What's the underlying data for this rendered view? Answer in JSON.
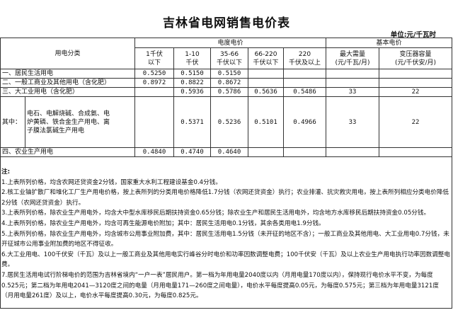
{
  "title": "吉林省电网销售电价表",
  "unit": "单位:元/千瓦时",
  "header": {
    "category": "用电分类",
    "energy_price": "电度电价",
    "basic_price": "基本电价",
    "voltage_cols": [
      "1千伏\n以下",
      "1-10\n千伏",
      "35-66\n千伏以下",
      "66-220\n千伏以下",
      "220\n千伏及以上"
    ],
    "basic_cols": [
      "最大需量\n(元/千瓦/月)",
      "变压器容量\n(元/千伏安/月)"
    ]
  },
  "rows": [
    {
      "label": "一、居民生活用电",
      "values": [
        "0.5250",
        "0.5150",
        "0.5150",
        "",
        "",
        "",
        ""
      ]
    },
    {
      "label": "二、一般工商业及其他用电（含化肥）",
      "values": [
        "0.8972",
        "0.8822",
        "0.8672",
        "",
        "",
        "",
        ""
      ]
    },
    {
      "label": "三、大工业用电（含化肥）",
      "values": [
        "",
        "0.5936",
        "0.5786",
        "0.5636",
        "0.5486",
        "33",
        "22"
      ]
    },
    {
      "label": "其中：",
      "sublabel": "电石、电解烧碱、合成氨、电炉黄磷、铁合金生产用电、离子膜法氯碱生产用电",
      "values": [
        "",
        "0.5371",
        "0.5236",
        "0.5101",
        "0.4966",
        "33",
        "22"
      ]
    },
    {
      "label": "四、农业生产用电",
      "values": [
        "0.4840",
        "0.4740",
        "0.4640",
        "",
        "",
        "",
        ""
      ]
    }
  ],
  "notes": {
    "heading": "注:",
    "items": [
      "1.上表所列价格，均含农网还贷资金2分钱，国家重大水利工程建设基金0.4分钱。",
      "2.核工业铀扩散厂和堆化工厂生产用电价格，按上表所列的分类用电价格降低1.7分钱（农网还贷资金）执行；农业排灌、抗灾救灾用电，按上表所列相应分类电价降低2分钱（农网还贷资金）执行。",
      "3.上表所列价格，除农业生产用电外，均含大中型水库移民后期扶持资金0.65分钱；除农业生产和居民生活用电外，均含地方水库移民后期扶持资金0.05分钱。",
      "4.上表所列价格，除农业生产用电外，均含可再生能源电价附加；其中：居民生活用电0.1分钱，其余各类用电1.9分钱。",
      "5.上表所列价格，除农业生产用电外，均含城市公用事业附加费，其中：居民生活用电1.5分钱（未开征的地区不含）；一般工商业及其他用电、大工业用电0.7分钱，未开征城市公用事业附加费的地区不得征收。",
      "6.大工业用电、100千伏安（千瓦）及以上一般工商业及其他用电实行峰谷分时电价和功率因数调整电费；100千伏安（千瓦）及以上农业生产用电执行功率因数调整电费。",
      "7.居民生活用电试行阶梯电价的范围为吉林省境内“一户一表”居民用户。第一档为年用电量2040度以内（月用电量170度以内），保持现行电价水平不变，为每度0.525元；第二档为年用电2041—3120度之间的电量（月用电量171—260度之间电量），电价水平每度提高0.05元，为每度0.575元；第三档为年用电量3121度（月用电量261度）及以上，电价水平每度提高0.30元，为每度0.825元。"
    ]
  }
}
